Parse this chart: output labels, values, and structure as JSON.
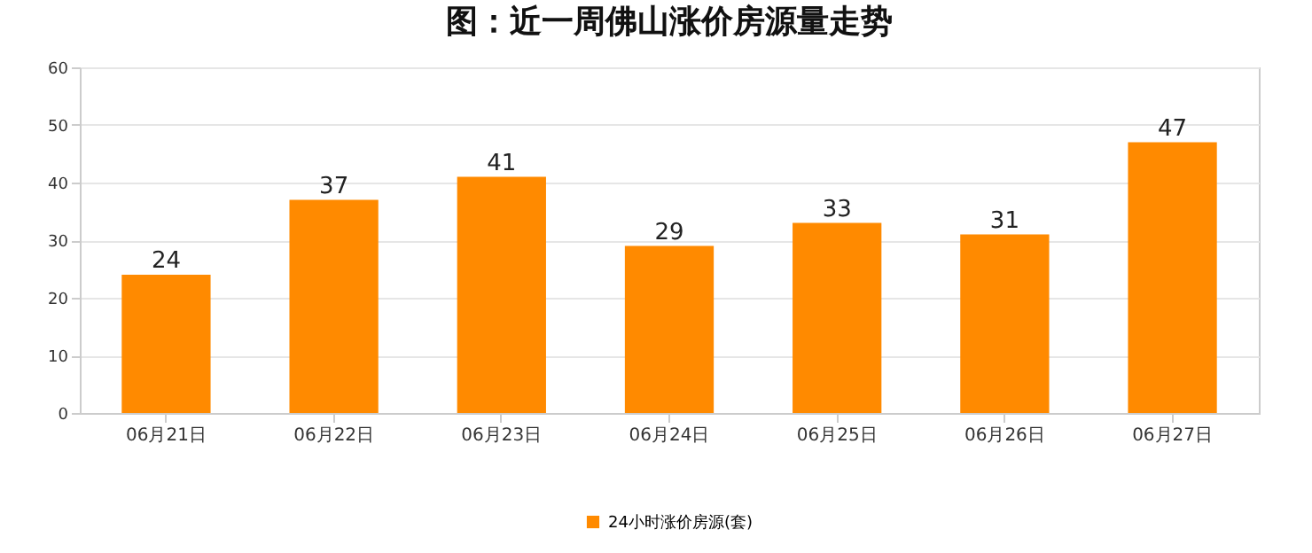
{
  "chart_data": {
    "type": "bar",
    "title": "图：近一周佛山涨价房源量走势",
    "categories": [
      "06月21日",
      "06月22日",
      "06月23日",
      "06月24日",
      "06月25日",
      "06月26日",
      "06月27日"
    ],
    "series": [
      {
        "name": "24小时涨价房源(套)",
        "color": "#ff8a00",
        "values": [
          24,
          37,
          41,
          29,
          33,
          31,
          47
        ]
      }
    ],
    "ylim": [
      0,
      60
    ],
    "yticks": [
      0,
      10,
      20,
      30,
      40,
      50,
      60
    ],
    "grid": "y",
    "legend": "bottom",
    "data_labels": true
  }
}
